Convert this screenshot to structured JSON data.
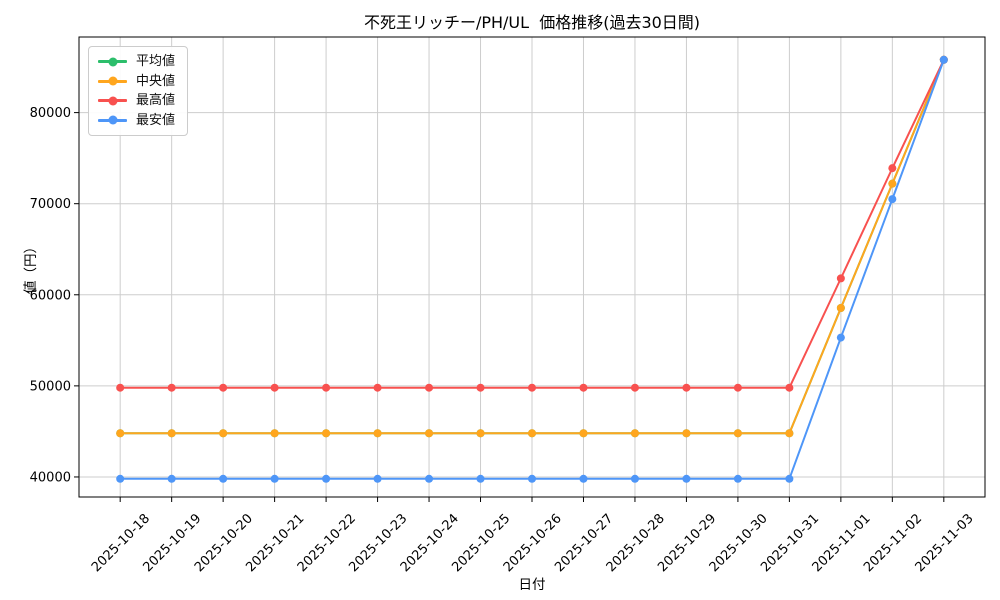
{
  "chart_data": {
    "type": "line",
    "title": "不死王リッチー/PH/UL  価格推移(過去30日間)",
    "xlabel": "日付",
    "ylabel": "値（円）",
    "categories": [
      "2025-10-18",
      "2025-10-19",
      "2025-10-20",
      "2025-10-21",
      "2025-10-22",
      "2025-10-23",
      "2025-10-24",
      "2025-10-25",
      "2025-10-26",
      "2025-10-27",
      "2025-10-28",
      "2025-10-29",
      "2025-10-30",
      "2025-10-31",
      "2025-11-01",
      "2025-11-02",
      "2025-11-03"
    ],
    "series": [
      {
        "name": "平均値",
        "color": "#2cbe6b",
        "marker": "o",
        "values": [
          44800,
          44800,
          44800,
          44800,
          44800,
          44800,
          44800,
          44800,
          44800,
          44800,
          44800,
          44800,
          44800,
          44800,
          58550,
          72200,
          85800
        ]
      },
      {
        "name": "中央値",
        "color": "#ffa61e",
        "marker": "o",
        "values": [
          44800,
          44800,
          44800,
          44800,
          44800,
          44800,
          44800,
          44800,
          44800,
          44800,
          44800,
          44800,
          44800,
          44800,
          58550,
          72200,
          85800
        ]
      },
      {
        "name": "最高値",
        "color": "#f8514f",
        "marker": "o",
        "values": [
          49800,
          49800,
          49800,
          49800,
          49800,
          49800,
          49800,
          49800,
          49800,
          49800,
          49800,
          49800,
          49800,
          49800,
          61800,
          73900,
          85800
        ]
      },
      {
        "name": "最安値",
        "color": "#4e96f8",
        "marker": "o",
        "values": [
          39800,
          39800,
          39800,
          39800,
          39800,
          39800,
          39800,
          39800,
          39800,
          39800,
          39800,
          39800,
          39800,
          39800,
          55300,
          70500,
          85800
        ]
      }
    ],
    "yticks": [
      40000,
      50000,
      60000,
      70000,
      80000
    ],
    "ylim": [
      37800,
      88300
    ],
    "grid": true,
    "grid_color": "#cdcdcd",
    "legend_position": "upper left",
    "x_tick_rotation": 45,
    "note_hidden_series": "平均値 (green) coincides exactly with 中央値 (orange) and is hidden beneath it"
  }
}
